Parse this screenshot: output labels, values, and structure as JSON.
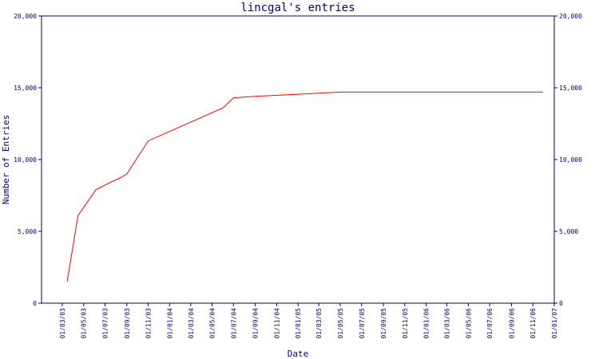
{
  "chart_data": {
    "type": "line",
    "title": "lincgal's entries",
    "xlabel": "Date",
    "ylabel": "Number of Entries",
    "ylim": [
      0,
      20000
    ],
    "yticks": [
      0,
      5000,
      10000,
      15000,
      20000
    ],
    "ytick_labels": [
      "0",
      "5,000",
      "10,000",
      "15,000",
      "20,000"
    ],
    "right_axis": true,
    "grid": false,
    "xlim": [
      "2003-01-01",
      "2007-01-01"
    ],
    "xtick_labels": [
      "01/03/03",
      "01/05/03",
      "01/07/03",
      "01/09/03",
      "01/11/03",
      "01/01/04",
      "01/03/04",
      "01/05/04",
      "01/07/04",
      "01/09/04",
      "01/11/04",
      "01/01/05",
      "01/03/05",
      "01/05/05",
      "01/07/05",
      "01/09/05",
      "01/11/05",
      "01/01/06",
      "01/03/06",
      "01/05/06",
      "01/07/06",
      "01/09/06",
      "01/11/06",
      "01/01/07"
    ],
    "xticks": [
      "2003-03-01",
      "2003-05-01",
      "2003-07-01",
      "2003-09-01",
      "2003-11-01",
      "2004-01-01",
      "2004-03-01",
      "2004-05-01",
      "2004-07-01",
      "2004-09-01",
      "2004-11-01",
      "2005-01-01",
      "2005-03-01",
      "2005-05-01",
      "2005-07-01",
      "2005-09-01",
      "2005-11-01",
      "2006-01-01",
      "2006-03-01",
      "2006-05-01",
      "2006-07-01",
      "2006-09-01",
      "2006-11-01",
      "2007-01-01"
    ],
    "series": [
      {
        "color": "#ff0000",
        "x": [
          "2003-03-15",
          "2003-04-01",
          "2003-04-15",
          "2003-06-05",
          "2003-07-15",
          "2003-08-15",
          "2003-09-01",
          "2003-11-01",
          "2004-06-01",
          "2004-07-01",
          "2004-09-01",
          "2005-01-01",
          "2005-05-01",
          "2006-11-30"
        ],
        "y": [
          1500,
          4000,
          6100,
          7900,
          8400,
          8750,
          9000,
          11300,
          13600,
          14300,
          14400,
          14550,
          14700,
          14700
        ]
      }
    ]
  }
}
